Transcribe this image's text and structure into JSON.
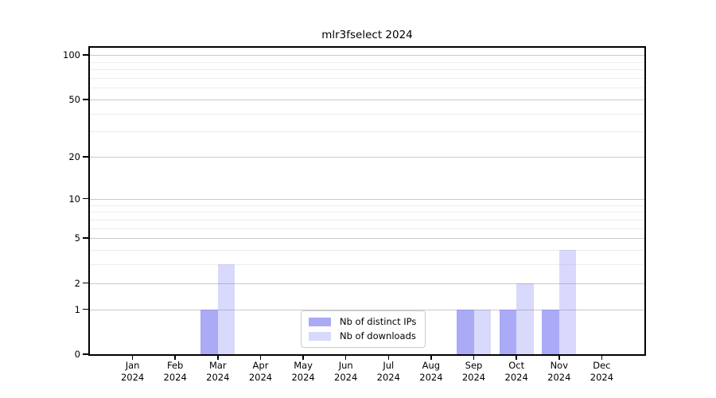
{
  "title": "mlr3fselect 2024",
  "legend": {
    "items": [
      {
        "label": "Nb of distinct IPs",
        "color": "rgba(120,120,240,0.63)"
      },
      {
        "label": "Nb of downloads",
        "color": "rgba(120,120,240,0.28)"
      }
    ]
  },
  "chart_data": {
    "type": "bar",
    "title": "mlr3fselect 2024",
    "categories": [
      "Jan",
      "Feb",
      "Mar",
      "Apr",
      "May",
      "Jun",
      "Jul",
      "Aug",
      "Sep",
      "Oct",
      "Nov",
      "Dec"
    ],
    "year": "2024",
    "series": [
      {
        "name": "Nb of distinct IPs",
        "color": "rgba(120,120,240,0.63)",
        "values": [
          0,
          0,
          1,
          0,
          0,
          0,
          0,
          0,
          1,
          1,
          1,
          0
        ]
      },
      {
        "name": "Nb of downloads",
        "color": "rgba(120,120,240,0.28)",
        "values": [
          0,
          0,
          3,
          0,
          0,
          0,
          0,
          0,
          1,
          2,
          4,
          0
        ]
      }
    ],
    "yscale": "log1p",
    "ylim": [
      0,
      112
    ],
    "yticks_major": [
      100,
      50,
      20,
      10,
      5,
      2,
      1,
      0
    ],
    "gridlines_minor": [
      90,
      80,
      70,
      60,
      40,
      30,
      9,
      8,
      7,
      6,
      4,
      3
    ],
    "grid": true,
    "legend_position": "bottom-center",
    "xlabel": "",
    "ylabel": ""
  },
  "colors": {
    "grid_major": "#c9c9c9",
    "grid_minor": "#ededed",
    "spine": "#000000",
    "legend_border": "#cccccc"
  }
}
